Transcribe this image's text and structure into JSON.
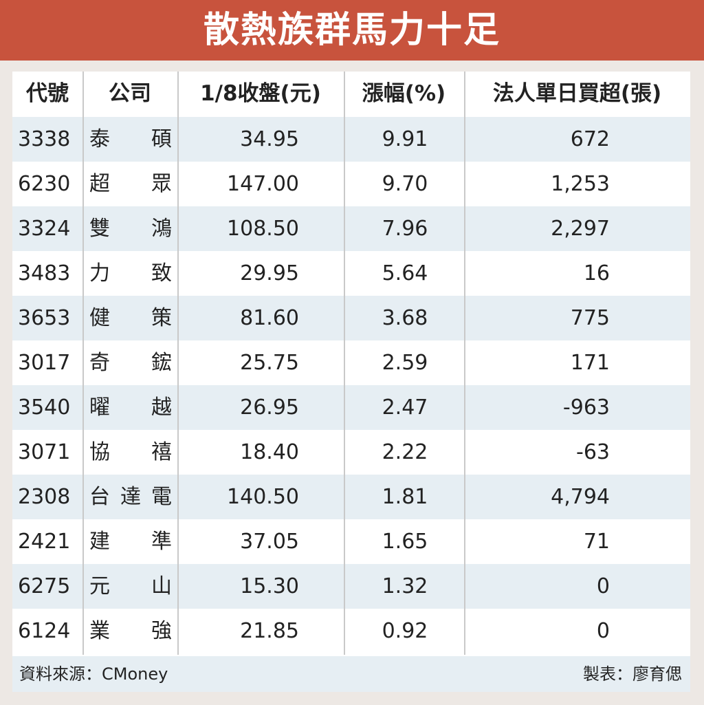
{
  "title": "散熱族群馬力十足",
  "table": {
    "header": [
      "代號",
      "公司",
      "1/8收盤(元)",
      "漲幅(%)",
      "法人單日買超(張)"
    ],
    "rows": [
      [
        "3338",
        "泰碩",
        "34.95",
        "9.91",
        "672"
      ],
      [
        "6230",
        "超眾",
        "147.00",
        "9.70",
        "1,253"
      ],
      [
        "3324",
        "雙鴻",
        "108.50",
        "7.96",
        "2,297"
      ],
      [
        "3483",
        "力致",
        "29.95",
        "5.64",
        "16"
      ],
      [
        "3653",
        "健策",
        "81.60",
        "3.68",
        "775"
      ],
      [
        "3017",
        "奇鋐",
        "25.75",
        "2.59",
        "171"
      ],
      [
        "3540",
        "曜越",
        "26.95",
        "2.47",
        "-963"
      ],
      [
        "3071",
        "協禧",
        "18.40",
        "2.22",
        "-63"
      ],
      [
        "2308",
        "台達電",
        "140.50",
        "1.81",
        "4,794"
      ],
      [
        "2421",
        "建準",
        "37.05",
        "1.65",
        "71"
      ],
      [
        "6275",
        "元山",
        "15.30",
        "1.32",
        "0"
      ],
      [
        "6124",
        "業強",
        "21.85",
        "0.92",
        "0"
      ]
    ]
  },
  "footer": {
    "source": "資料來源：CMoney",
    "author": "製表：廖育偲"
  }
}
